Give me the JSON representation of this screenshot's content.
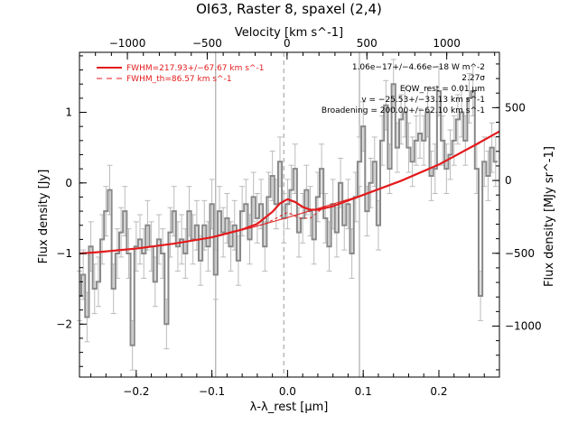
{
  "chart_data": {
    "type": "line",
    "title": "OI63, Raster 8, spaxel (2,4)",
    "xlabel": "λ-λ_rest [μm]",
    "ylabel": "Flux density [Jy]",
    "top_xlabel": "Velocity [km s^-1]",
    "right_ylabel": "Flux density [MJy sr^-1]",
    "xlim": [
      -0.275,
      0.28
    ],
    "ylim": [
      -2.75,
      1.85
    ],
    "top_xlim": [
      -1300,
      1330
    ],
    "right_ylim": [
      -1350,
      880
    ],
    "x_ticks": [
      -0.2,
      -0.1,
      0.0,
      0.1,
      0.2
    ],
    "x_tick_labels": [
      "−0.2",
      "−0.1",
      "0.0",
      "0.1",
      "0.2"
    ],
    "y_ticks": [
      -2,
      -1,
      0,
      1
    ],
    "y_tick_labels": [
      "−2",
      "−1",
      "0",
      "1"
    ],
    "top_ticks": [
      -1000,
      -500,
      0,
      500,
      1000
    ],
    "top_tick_labels": [
      "−1000",
      "−500",
      "0",
      "500",
      "1000"
    ],
    "right_ticks": [
      -1000,
      -500,
      0,
      500
    ],
    "right_tick_labels": [
      "−1000",
      "−500",
      "0",
      "500"
    ],
    "vertical_lines": [
      -0.095,
      -0.005,
      0.095
    ],
    "grid": false,
    "legend_position": "top-left",
    "legend": [
      {
        "label": "FWHM=217.93+/−67.67 km s^-1",
        "style": "solid",
        "color": "#e41a1c"
      },
      {
        "label": "FWHM_th=86.57 km s^-1",
        "style": "dashed",
        "color": "#e41a1c"
      }
    ],
    "annotations": [
      "1.06e−17+/−4.66e−18 W m^-2",
      "2.27σ",
      "EQW_rest = 0.01 μm",
      "v = −25.53+/−33.13 km s^-1",
      "Broadening = 200.00+/−62.10 km s^-1"
    ],
    "series": [
      {
        "kind": "step",
        "color": "#888888",
        "x": [
          -0.275,
          -0.27,
          -0.265,
          -0.26,
          -0.255,
          -0.25,
          -0.245,
          -0.24,
          -0.235,
          -0.23,
          -0.225,
          -0.22,
          -0.215,
          -0.21,
          -0.205,
          -0.2,
          -0.195,
          -0.19,
          -0.185,
          -0.18,
          -0.175,
          -0.17,
          -0.165,
          -0.16,
          -0.155,
          -0.15,
          -0.145,
          -0.14,
          -0.135,
          -0.13,
          -0.125,
          -0.12,
          -0.115,
          -0.11,
          -0.105,
          -0.1,
          -0.095,
          -0.09,
          -0.085,
          -0.08,
          -0.075,
          -0.07,
          -0.065,
          -0.06,
          -0.055,
          -0.05,
          -0.045,
          -0.04,
          -0.035,
          -0.03,
          -0.025,
          -0.02,
          -0.015,
          -0.01,
          -0.005,
          0.0,
          0.005,
          0.01,
          0.015,
          0.02,
          0.025,
          0.03,
          0.035,
          0.04,
          0.045,
          0.05,
          0.055,
          0.06,
          0.065,
          0.07,
          0.075,
          0.08,
          0.085,
          0.09,
          0.095,
          0.1,
          0.105,
          0.11,
          0.115,
          0.12,
          0.125,
          0.13,
          0.135,
          0.14,
          0.145,
          0.15,
          0.155,
          0.16,
          0.165,
          0.17,
          0.175,
          0.18,
          0.185,
          0.19,
          0.195,
          0.2,
          0.205,
          0.21,
          0.215,
          0.22,
          0.225,
          0.23,
          0.235,
          0.24,
          0.245,
          0.25,
          0.255,
          0.26,
          0.265,
          0.27,
          0.275
        ],
        "y": [
          -1.6,
          -1.3,
          -1.9,
          -0.9,
          -1.5,
          -1.4,
          -0.8,
          -0.4,
          -0.1,
          -1.5,
          -1.0,
          -0.7,
          -0.4,
          -1.0,
          -2.3,
          -0.9,
          -0.8,
          -1.0,
          -0.6,
          -0.9,
          -1.4,
          -0.8,
          -1.0,
          -2.0,
          -0.7,
          -0.4,
          -0.9,
          -0.8,
          -1.0,
          -0.4,
          -0.8,
          -0.6,
          -1.1,
          -0.6,
          -0.9,
          -0.3,
          -1.3,
          -0.4,
          -0.7,
          -0.5,
          -0.9,
          -0.6,
          -1.1,
          -0.4,
          -0.3,
          -0.8,
          -0.2,
          -0.5,
          -0.3,
          -0.9,
          -0.2,
          0.1,
          -0.3,
          0.3,
          -0.5,
          -0.3,
          -0.1,
          0.2,
          -0.7,
          -0.5,
          -0.1,
          -0.4,
          -0.8,
          -0.2,
          0.2,
          -0.5,
          -0.9,
          -0.3,
          -0.7,
          0.0,
          -0.6,
          -0.3,
          -1.0,
          -0.2,
          0.3,
          0.8,
          -0.4,
          0.0,
          0.3,
          -0.6,
          0.6,
          1.1,
          0.2,
          1.4,
          0.5,
          0.9,
          1.0,
          0.5,
          0.3,
          0.6,
          0.7,
          0.6,
          1.0,
          0.1,
          0.2,
          1.3,
          0.6,
          0.2,
          0.4,
          0.6,
          0.9,
          1.0,
          0.6,
          1.2,
          1.3,
          0.2,
          -1.6,
          0.3,
          0.1,
          0.5,
          0.3
        ],
        "yerr": 0.35
      },
      {
        "kind": "line",
        "name": "FWHM=217.93+/−67.67 km s^-1",
        "color": "#e41a1c",
        "x": [
          -0.275,
          -0.25,
          -0.2,
          -0.15,
          -0.1,
          -0.06,
          -0.04,
          -0.02,
          -0.01,
          0.0,
          0.01,
          0.02,
          0.03,
          0.04,
          0.06,
          0.1,
          0.15,
          0.2,
          0.25,
          0.28
        ],
        "y": [
          -1.0,
          -0.98,
          -0.93,
          -0.86,
          -0.77,
          -0.66,
          -0.58,
          -0.41,
          -0.29,
          -0.23,
          -0.27,
          -0.34,
          -0.38,
          -0.38,
          -0.33,
          -0.17,
          0.03,
          0.26,
          0.55,
          0.73
        ]
      },
      {
        "kind": "line",
        "name": "continuum",
        "color": "#e41a1c",
        "x": [
          -0.275,
          -0.25,
          -0.2,
          -0.15,
          -0.1,
          -0.05,
          0.0,
          0.05,
          0.1,
          0.15,
          0.2,
          0.25,
          0.28
        ],
        "y": [
          -1.0,
          -0.98,
          -0.93,
          -0.86,
          -0.77,
          -0.64,
          -0.49,
          -0.33,
          -0.17,
          0.03,
          0.26,
          0.55,
          0.73
        ]
      },
      {
        "kind": "line",
        "name": "thermal",
        "color": "#e41a1c",
        "dashed": true,
        "x": [
          -0.05,
          -0.03,
          -0.015,
          -0.005,
          0.0,
          0.005,
          0.015,
          0.03,
          0.05
        ],
        "y": [
          -0.64,
          -0.58,
          -0.5,
          -0.44,
          -0.42,
          -0.44,
          -0.5,
          -0.5,
          -0.33
        ]
      }
    ]
  }
}
